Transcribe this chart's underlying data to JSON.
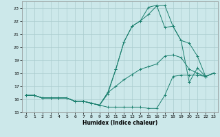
{
  "xlabel": "Humidex (Indice chaleur)",
  "background_color": "#cce8ea",
  "grid_color": "#aaccce",
  "line_color": "#1a7f6e",
  "xlim": [
    -0.5,
    23.5
  ],
  "ylim": [
    15.0,
    23.5
  ],
  "yticks": [
    15,
    16,
    17,
    18,
    19,
    20,
    21,
    22,
    23
  ],
  "xticks": [
    0,
    1,
    2,
    3,
    4,
    5,
    6,
    7,
    8,
    9,
    10,
    11,
    12,
    13,
    14,
    15,
    16,
    17,
    18,
    19,
    20,
    21,
    22,
    23
  ],
  "series": [
    {
      "x": [
        0,
        1,
        2,
        3,
        4,
        5,
        6,
        7,
        8,
        9,
        10,
        11,
        12,
        13,
        14,
        15,
        16,
        17,
        18,
        19,
        20,
        21,
        22,
        23
      ],
      "y": [
        16.3,
        16.3,
        16.1,
        16.1,
        16.1,
        16.1,
        15.85,
        15.85,
        15.7,
        15.55,
        15.4,
        15.4,
        15.4,
        15.4,
        15.4,
        15.3,
        15.3,
        16.3,
        17.75,
        17.85,
        17.85,
        17.85,
        17.75,
        18.0
      ]
    },
    {
      "x": [
        0,
        1,
        2,
        3,
        4,
        5,
        6,
        7,
        8,
        9,
        10,
        11,
        12,
        13,
        14,
        15,
        16,
        17,
        18,
        19,
        20,
        21,
        22,
        23
      ],
      "y": [
        16.3,
        16.3,
        16.1,
        16.1,
        16.1,
        16.1,
        15.85,
        15.85,
        15.7,
        15.55,
        16.5,
        17.0,
        17.5,
        17.9,
        18.3,
        18.5,
        18.7,
        19.3,
        19.4,
        19.2,
        18.3,
        18.0,
        17.75,
        18.0
      ]
    },
    {
      "x": [
        0,
        1,
        2,
        3,
        4,
        5,
        6,
        7,
        8,
        9,
        10,
        11,
        12,
        13,
        14,
        15,
        16,
        17,
        18,
        19,
        20,
        21,
        22,
        23
      ],
      "y": [
        16.3,
        16.3,
        16.1,
        16.1,
        16.1,
        16.1,
        15.85,
        15.85,
        15.7,
        15.55,
        16.5,
        18.3,
        20.4,
        21.6,
        22.0,
        22.5,
        23.15,
        23.2,
        21.6,
        20.5,
        20.3,
        19.3,
        17.75,
        18.0
      ]
    },
    {
      "x": [
        0,
        1,
        2,
        3,
        4,
        5,
        6,
        7,
        8,
        9,
        10,
        11,
        12,
        13,
        14,
        15,
        16,
        17,
        18,
        19,
        20,
        21,
        22,
        23
      ],
      "y": [
        16.3,
        16.3,
        16.1,
        16.1,
        16.1,
        16.1,
        15.85,
        15.85,
        15.7,
        15.55,
        16.4,
        18.3,
        20.4,
        21.6,
        22.0,
        23.05,
        23.2,
        21.5,
        21.6,
        20.5,
        17.3,
        18.4,
        17.75,
        18.0
      ]
    }
  ]
}
